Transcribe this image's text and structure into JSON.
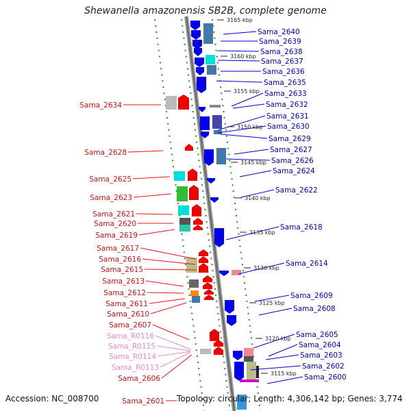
{
  "title": "Shewanella amazonensis SB2B, complete genome",
  "footer": {
    "accession": "Accession: NC_008700",
    "stats": "Topology: circular; Length: 4,306,142 bp; Genes: 3,774"
  },
  "ticks": [
    "3165 kbp",
    "3160 kbp",
    "3155 kbp",
    "3150 kbp",
    "3145 kbp",
    "3140 kbp",
    "3135 kbp",
    "3130 kbp",
    "3125 kbp",
    "3120 kbp",
    "3115 kbp"
  ],
  "left_labels": [
    {
      "text": "Sama_2634",
      "type": "gene"
    },
    {
      "text": "Sama_2628",
      "type": "gene"
    },
    {
      "text": "Sama_2625",
      "type": "gene"
    },
    {
      "text": "Sama_2623",
      "type": "gene"
    },
    {
      "text": "Sama_2621",
      "type": "gene"
    },
    {
      "text": "Sama_2620",
      "type": "gene"
    },
    {
      "text": "Sama_2619",
      "type": "gene"
    },
    {
      "text": "Sama_2617",
      "type": "gene"
    },
    {
      "text": "Sama_2616",
      "type": "gene"
    },
    {
      "text": "Sama_2615",
      "type": "gene"
    },
    {
      "text": "Sama_2613",
      "type": "gene"
    },
    {
      "text": "Sama_2612",
      "type": "gene"
    },
    {
      "text": "Sama_2611",
      "type": "gene"
    },
    {
      "text": "Sama_2610",
      "type": "gene"
    },
    {
      "text": "Sama_2607",
      "type": "gene"
    },
    {
      "text": "Sama_R0116",
      "type": "rna"
    },
    {
      "text": "Sama_R0115",
      "type": "rna"
    },
    {
      "text": "Sama_R0114",
      "type": "rna"
    },
    {
      "text": "Sama_R0113",
      "type": "rna"
    },
    {
      "text": "Sama_2606",
      "type": "gene"
    },
    {
      "text": "Sama_2601",
      "type": "gene"
    }
  ],
  "right_labels": [
    "Sama_2640",
    "Sama_2639",
    "Sama_2638",
    "Sama_2637",
    "Sama_2636",
    "Sama_2635",
    "Sama_2633",
    "Sama_2632",
    "Sama_2631",
    "Sama_2630",
    "Sama_2629",
    "Sama_2627",
    "Sama_2626",
    "Sama_2624",
    "Sama_2622",
    "Sama_2618",
    "Sama_2614",
    "Sama_2609",
    "Sama_2608",
    "Sama_2605",
    "Sama_2604",
    "Sama_2603",
    "Sama_2602",
    "Sama_2600"
  ],
  "colors": {
    "forward_gene": "#0000ee",
    "reverse_gene": "#ee0000",
    "rna": "#ee88bb",
    "backbone": "#888888",
    "ticks_line": "#228822"
  }
}
